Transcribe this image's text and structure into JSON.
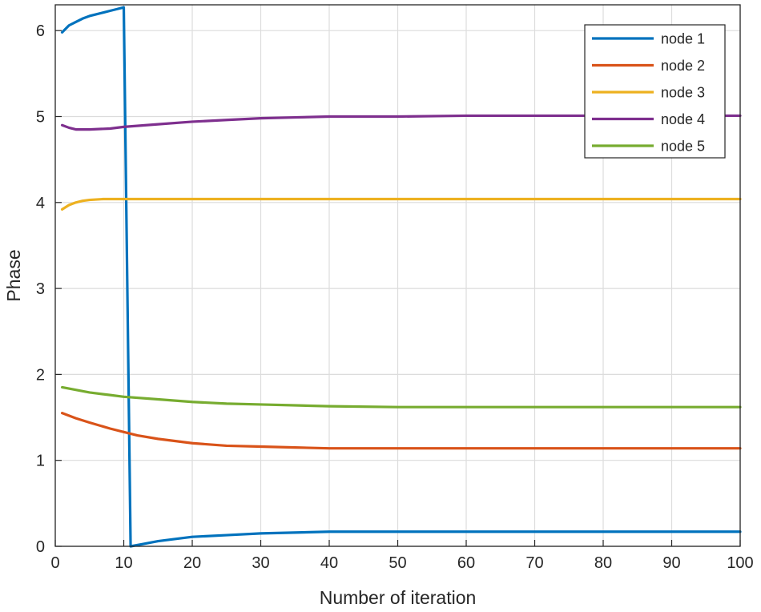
{
  "chart_data": {
    "type": "line",
    "title": "",
    "xlabel": "Number of iteration",
    "ylabel": "Phase",
    "xlim": [
      0,
      100
    ],
    "ylim": [
      0,
      6.3
    ],
    "xticks": [
      "0",
      "10",
      "20",
      "30",
      "40",
      "50",
      "60",
      "70",
      "80",
      "90",
      "100"
    ],
    "yticks": [
      "0",
      "1",
      "2",
      "3",
      "4",
      "5",
      "6"
    ],
    "grid": true,
    "legend_position": "top-right",
    "series": [
      {
        "name": "node 1",
        "color": "#0072BD",
        "points": [
          [
            1,
            5.98
          ],
          [
            2,
            6.06
          ],
          [
            3,
            6.1
          ],
          [
            4,
            6.14
          ],
          [
            5,
            6.17
          ],
          [
            6,
            6.19
          ],
          [
            7,
            6.21
          ],
          [
            8,
            6.23
          ],
          [
            9,
            6.25
          ],
          [
            10,
            6.27
          ],
          [
            11,
            0.0
          ],
          [
            13,
            0.03
          ],
          [
            15,
            0.06
          ],
          [
            18,
            0.09
          ],
          [
            20,
            0.11
          ],
          [
            25,
            0.13
          ],
          [
            30,
            0.15
          ],
          [
            40,
            0.17
          ],
          [
            50,
            0.17
          ],
          [
            60,
            0.17
          ],
          [
            70,
            0.17
          ],
          [
            80,
            0.17
          ],
          [
            90,
            0.17
          ],
          [
            100,
            0.17
          ]
        ]
      },
      {
        "name": "node 2",
        "color": "#D95319",
        "points": [
          [
            1,
            1.55
          ],
          [
            3,
            1.49
          ],
          [
            5,
            1.44
          ],
          [
            8,
            1.37
          ],
          [
            10,
            1.33
          ],
          [
            12,
            1.29
          ],
          [
            15,
            1.25
          ],
          [
            20,
            1.2
          ],
          [
            25,
            1.17
          ],
          [
            30,
            1.16
          ],
          [
            35,
            1.15
          ],
          [
            40,
            1.14
          ],
          [
            50,
            1.14
          ],
          [
            60,
            1.14
          ],
          [
            70,
            1.14
          ],
          [
            80,
            1.14
          ],
          [
            90,
            1.14
          ],
          [
            100,
            1.14
          ]
        ]
      },
      {
        "name": "node 3",
        "color": "#EDB120",
        "points": [
          [
            1,
            3.92
          ],
          [
            2,
            3.97
          ],
          [
            3,
            4.0
          ],
          [
            4,
            4.02
          ],
          [
            5,
            4.03
          ],
          [
            7,
            4.04
          ],
          [
            10,
            4.04
          ],
          [
            20,
            4.04
          ],
          [
            40,
            4.04
          ],
          [
            60,
            4.04
          ],
          [
            80,
            4.04
          ],
          [
            100,
            4.04
          ]
        ]
      },
      {
        "name": "node 4",
        "color": "#7E2F8E",
        "points": [
          [
            1,
            4.9
          ],
          [
            2,
            4.87
          ],
          [
            3,
            4.85
          ],
          [
            5,
            4.85
          ],
          [
            8,
            4.86
          ],
          [
            10,
            4.88
          ],
          [
            15,
            4.91
          ],
          [
            20,
            4.94
          ],
          [
            25,
            4.96
          ],
          [
            30,
            4.98
          ],
          [
            35,
            4.99
          ],
          [
            40,
            5.0
          ],
          [
            50,
            5.0
          ],
          [
            60,
            5.01
          ],
          [
            70,
            5.01
          ],
          [
            80,
            5.01
          ],
          [
            90,
            5.01
          ],
          [
            100,
            5.01
          ]
        ]
      },
      {
        "name": "node 5",
        "color": "#77AC30",
        "points": [
          [
            1,
            1.85
          ],
          [
            3,
            1.82
          ],
          [
            5,
            1.79
          ],
          [
            8,
            1.76
          ],
          [
            10,
            1.74
          ],
          [
            15,
            1.71
          ],
          [
            20,
            1.68
          ],
          [
            25,
            1.66
          ],
          [
            30,
            1.65
          ],
          [
            35,
            1.64
          ],
          [
            40,
            1.63
          ],
          [
            50,
            1.62
          ],
          [
            60,
            1.62
          ],
          [
            70,
            1.62
          ],
          [
            80,
            1.62
          ],
          [
            90,
            1.62
          ],
          [
            100,
            1.62
          ]
        ]
      }
    ]
  }
}
